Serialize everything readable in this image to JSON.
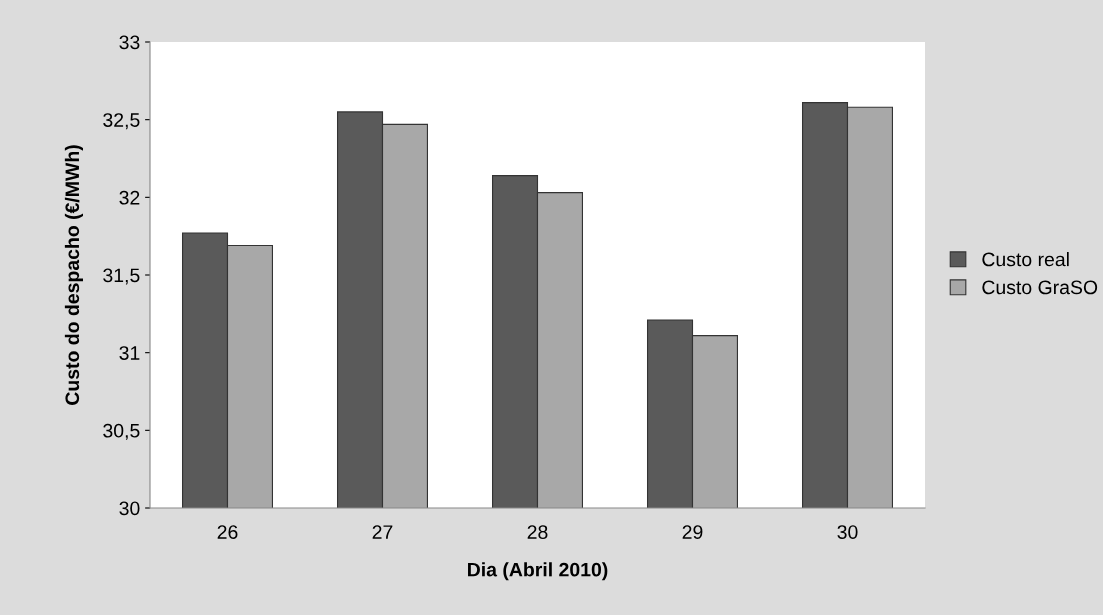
{
  "chart_data": {
    "type": "bar",
    "xlabel": "Dia (Abril 2010)",
    "ylabel": "Custo do despacho (€/MWh)",
    "categories": [
      "26",
      "27",
      "28",
      "29",
      "30"
    ],
    "series": [
      {
        "name": "Custo real",
        "color": "#5a5a5a",
        "values": [
          31.77,
          32.55,
          32.14,
          31.21,
          32.61
        ]
      },
      {
        "name": "Custo GraSO",
        "color": "#a8a8a8",
        "values": [
          31.69,
          32.47,
          32.03,
          31.11,
          32.58
        ]
      }
    ],
    "ylim": [
      30,
      33
    ],
    "yticks": [
      30,
      {
        "value": 30.5,
        "label": "30,5"
      },
      31,
      {
        "value": 31.5,
        "label": "31,5"
      },
      32,
      {
        "value": 32.5,
        "label": "32,5"
      },
      33
    ],
    "grid": false,
    "legend": "right"
  }
}
